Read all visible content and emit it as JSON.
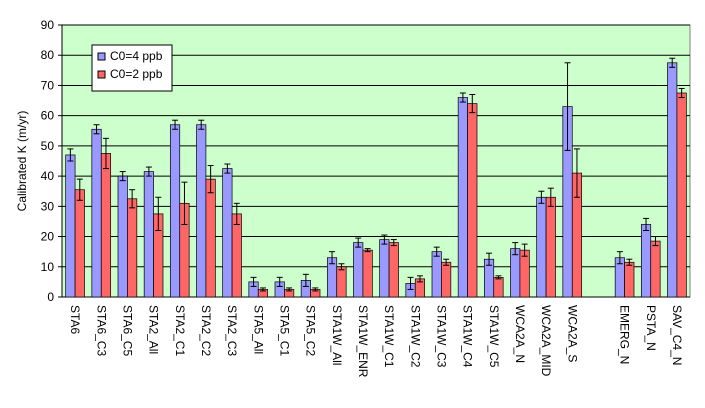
{
  "chart_data": {
    "type": "bar",
    "y_label": "Calibrated K (m/yr)",
    "categories": [
      "STA6",
      "STA6_C3",
      "STA6_C5",
      "STA2_All",
      "STA2_C1",
      "STA2_C2",
      "STA2_C3",
      "STA5_All",
      "STA5_C1",
      "STA5_C2",
      "STA1W_All",
      "STA1W_ENR",
      "STA1W_C1",
      "STA1W_C2",
      "STA1W_C3",
      "STA1W_C4",
      "STA1W_C5",
      "WCA2A_N",
      "WCA2A_MID",
      "WCA2A_S",
      null,
      "EMERG_N",
      "PSTA_N",
      "SAV_C4_N"
    ],
    "series": [
      {
        "name": "C0=4 ppb",
        "color": "#9999ff",
        "values": [
          47,
          55.5,
          40,
          41.5,
          57,
          57,
          42.5,
          5,
          5,
          5.5,
          13,
          18,
          19,
          4.5,
          15,
          66,
          12.5,
          16,
          33,
          63,
          null,
          13,
          24,
          77.5
        ],
        "errors": [
          2,
          1.5,
          1.5,
          1.5,
          1.5,
          1.5,
          1.5,
          1.5,
          1.5,
          2,
          2,
          1.5,
          1.5,
          2,
          1.5,
          1.5,
          2,
          2,
          2,
          14.5,
          null,
          2,
          2,
          1.5
        ]
      },
      {
        "name": "C0=2 ppb",
        "color": "#ff6666",
        "values": [
          35.5,
          47.5,
          32.5,
          27.5,
          31,
          39,
          27.5,
          2.5,
          2.5,
          2.5,
          10,
          15.5,
          18,
          6,
          11.5,
          64,
          6.5,
          15.5,
          33,
          41,
          null,
          11.5,
          18.5,
          67.5
        ],
        "errors": [
          3.5,
          5,
          3,
          5.5,
          7,
          4.5,
          3.5,
          0.5,
          0.5,
          0.5,
          1,
          0.5,
          1,
          1,
          1,
          3,
          0.5,
          2,
          3,
          8,
          null,
          1,
          1.5,
          1.5
        ]
      }
    ],
    "ylim": [
      0,
      90
    ],
    "yticks": [
      0,
      10,
      20,
      30,
      40,
      50,
      60,
      70,
      80,
      90
    ],
    "grid": true,
    "legend": "top-left",
    "background": "#ccffcc"
  }
}
